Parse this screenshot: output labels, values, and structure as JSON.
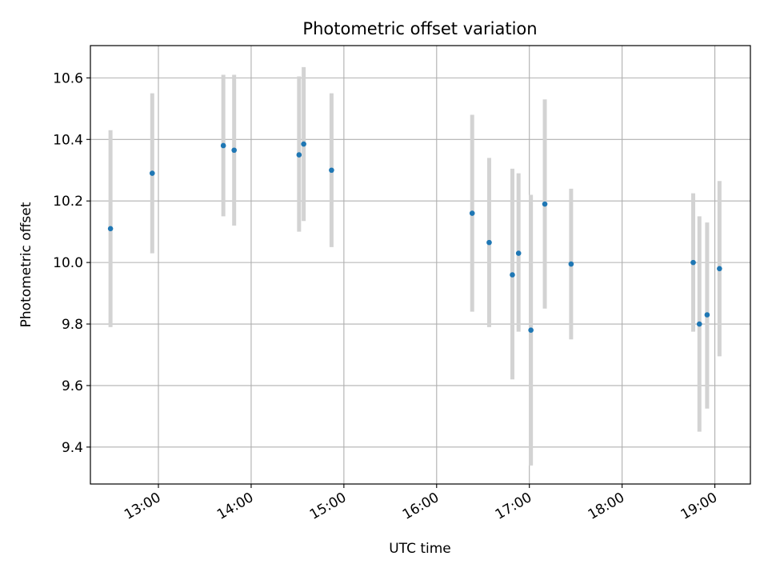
{
  "chart_data": {
    "type": "scatter",
    "title": "Photometric offset variation",
    "xlabel": "UTC time",
    "ylabel": "Photometric offset",
    "x_axis_type": "time",
    "xlim": [
      "12:16",
      "19:23"
    ],
    "ylim": [
      9.28,
      10.705
    ],
    "grid": true,
    "x_ticks": [
      "13:00",
      "14:00",
      "15:00",
      "16:00",
      "17:00",
      "18:00",
      "19:00"
    ],
    "y_ticks": [
      9.4,
      9.6,
      9.8,
      10.0,
      10.2,
      10.4,
      10.6
    ],
    "y_tick_labels": [
      "9.4",
      "9.6",
      "9.8",
      "10.0",
      "10.2",
      "10.4",
      "10.6"
    ],
    "marker_color": "#1f77b4",
    "errorbar_color": "#d3d3d3",
    "points": [
      {
        "time": "12:29",
        "y": 10.11,
        "low": 9.79,
        "high": 10.43
      },
      {
        "time": "12:56",
        "y": 10.29,
        "low": 10.03,
        "high": 10.55
      },
      {
        "time": "13:42",
        "y": 10.38,
        "low": 10.15,
        "high": 10.61
      },
      {
        "time": "13:49",
        "y": 10.365,
        "low": 10.12,
        "high": 10.61
      },
      {
        "time": "14:31",
        "y": 10.35,
        "low": 10.1,
        "high": 10.605
      },
      {
        "time": "14:34",
        "y": 10.385,
        "low": 10.135,
        "high": 10.635
      },
      {
        "time": "14:52",
        "y": 10.3,
        "low": 10.05,
        "high": 10.55
      },
      {
        "time": "16:23",
        "y": 10.16,
        "low": 9.84,
        "high": 10.48
      },
      {
        "time": "16:34",
        "y": 10.065,
        "low": 9.79,
        "high": 10.34
      },
      {
        "time": "16:49",
        "y": 9.96,
        "low": 9.62,
        "high": 10.305
      },
      {
        "time": "16:53",
        "y": 10.03,
        "low": 9.775,
        "high": 10.29
      },
      {
        "time": "17:01",
        "y": 9.78,
        "low": 9.34,
        "high": 10.22
      },
      {
        "time": "17:10",
        "y": 10.19,
        "low": 9.85,
        "high": 10.53
      },
      {
        "time": "17:27",
        "y": 9.995,
        "low": 9.75,
        "high": 10.24
      },
      {
        "time": "18:46",
        "y": 10.0,
        "low": 9.775,
        "high": 10.225
      },
      {
        "time": "18:50",
        "y": 9.8,
        "low": 9.45,
        "high": 10.15
      },
      {
        "time": "18:55",
        "y": 9.83,
        "low": 9.525,
        "high": 10.13
      },
      {
        "time": "19:03",
        "y": 9.98,
        "low": 9.695,
        "high": 10.265
      }
    ]
  }
}
